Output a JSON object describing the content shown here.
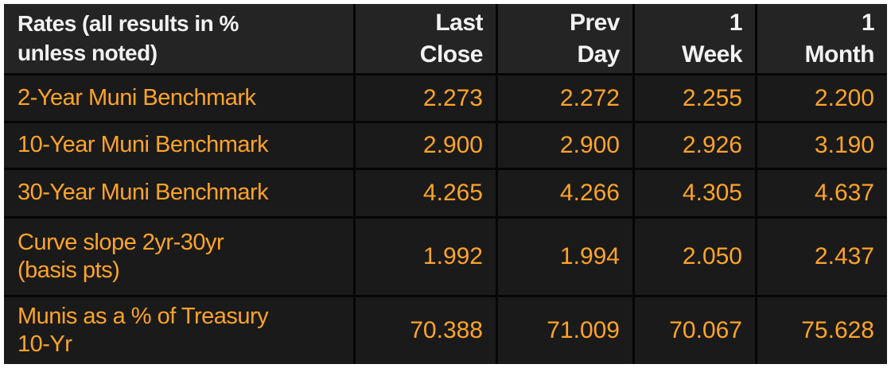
{
  "colors": {
    "frame": "#ffffff",
    "grid_lines": "#060606",
    "header_bg": "#242424",
    "row_bg": "#1a1a1a",
    "header_text": "#f2f2f2",
    "value_text": "#ffa428"
  },
  "table": {
    "corner_label": "Rates (all results in %\nunless noted)",
    "col_headers": [
      "Last\nClose",
      "Prev\nDay",
      "1\nWeek",
      "1\nMonth"
    ],
    "rows": [
      {
        "label": "2-Year Muni Benchmark",
        "values": [
          "2.273",
          "2.272",
          "2.255",
          "2.200"
        ]
      },
      {
        "label": "10-Year Muni Benchmark",
        "values": [
          "2.900",
          "2.900",
          "2.926",
          "3.190"
        ]
      },
      {
        "label": "30-Year Muni Benchmark",
        "values": [
          "4.265",
          "4.266",
          "4.305",
          "4.637"
        ]
      },
      {
        "label": "Curve slope 2yr-30yr\n(basis pts)",
        "values": [
          "1.992",
          "1.994",
          "2.050",
          "2.437"
        ]
      },
      {
        "label": "Munis as a % of Treasury\n10-Yr",
        "values": [
          "70.388",
          "71.009",
          "70.067",
          "75.628"
        ]
      }
    ]
  },
  "chart_data": {
    "type": "table",
    "title": "Rates (all results in % unless noted)",
    "columns": [
      "Last Close",
      "Prev Day",
      "1 Week",
      "1 Month"
    ],
    "rows": [
      {
        "label": "2-Year Muni Benchmark",
        "values": [
          2.273,
          2.272,
          2.255,
          2.2
        ]
      },
      {
        "label": "10-Year Muni Benchmark",
        "values": [
          2.9,
          2.9,
          2.926,
          3.19
        ]
      },
      {
        "label": "30-Year Muni Benchmark",
        "values": [
          4.265,
          4.266,
          4.305,
          4.637
        ]
      },
      {
        "label": "Curve slope 2yr-30yr (basis pts)",
        "values": [
          1.992,
          1.994,
          2.05,
          2.437
        ]
      },
      {
        "label": "Munis as a % of Treasury 10-Yr",
        "values": [
          70.388,
          71.009,
          70.067,
          75.628
        ]
      }
    ],
    "layout": {
      "value_alignment": "right",
      "header_style": "bold-white",
      "value_color": "amber",
      "grid": true
    }
  }
}
